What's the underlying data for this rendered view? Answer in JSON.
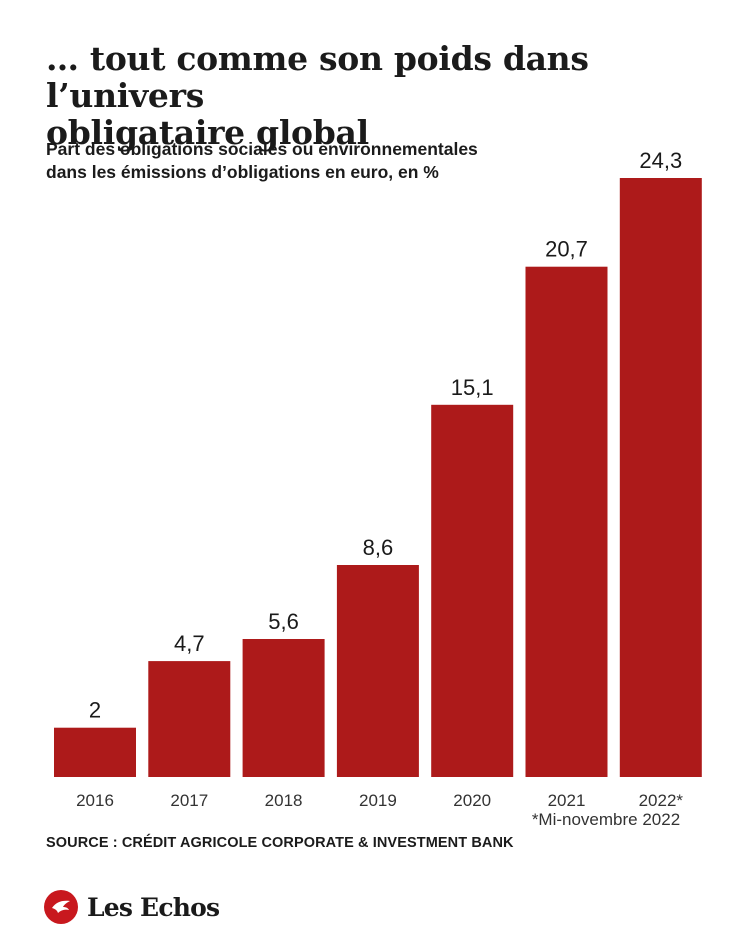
{
  "header": {
    "title_line1": "… tout comme son poids dans l’univers",
    "title_line2": "obligataire global",
    "subtitle_line1": "Part des obligations sociales ou environnementales",
    "subtitle_line2": "dans les émissions d’obligations en euro, en %"
  },
  "chart_data": {
    "type": "bar",
    "categories": [
      "2016",
      "2017",
      "2018",
      "2019",
      "2020",
      "2021",
      "2022*"
    ],
    "values": [
      2,
      4.7,
      5.6,
      8.6,
      15.1,
      20.7,
      24.3
    ],
    "value_labels": [
      "2",
      "4,7",
      "5,6",
      "8,6",
      "15,1",
      "20,7",
      "24,3"
    ],
    "footnote": "*Mi-novembre 2022",
    "ylim": [
      0,
      24.3
    ],
    "grid": false,
    "bar_color": "#ad1a1a"
  },
  "footer": {
    "source": "SOURCE : CRÉDIT AGRICOLE CORPORATE & INVESTMENT BANK",
    "brand": "Les Echos",
    "brand_color": "#c8181e"
  }
}
